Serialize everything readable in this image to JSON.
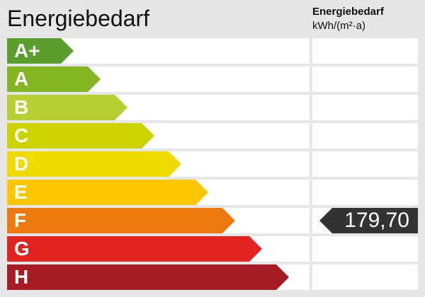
{
  "title": "Energiebedarf",
  "unit_header": {
    "line1": "Energiebedarf",
    "line2": "kWh/(m²·a)"
  },
  "classes": [
    {
      "label": "A+",
      "color": "#5a9e2b"
    },
    {
      "label": "A",
      "color": "#84b523"
    },
    {
      "label": "B",
      "color": "#b6cf31"
    },
    {
      "label": "C",
      "color": "#cdd300"
    },
    {
      "label": "D",
      "color": "#efdb00"
    },
    {
      "label": "E",
      "color": "#fdc700"
    },
    {
      "label": "F",
      "color": "#ec7a0c"
    },
    {
      "label": "G",
      "color": "#e2231f"
    },
    {
      "label": "H",
      "color": "#a61b24"
    }
  ],
  "indicator": {
    "value": "179,70",
    "class": "F",
    "color": "#333333"
  }
}
